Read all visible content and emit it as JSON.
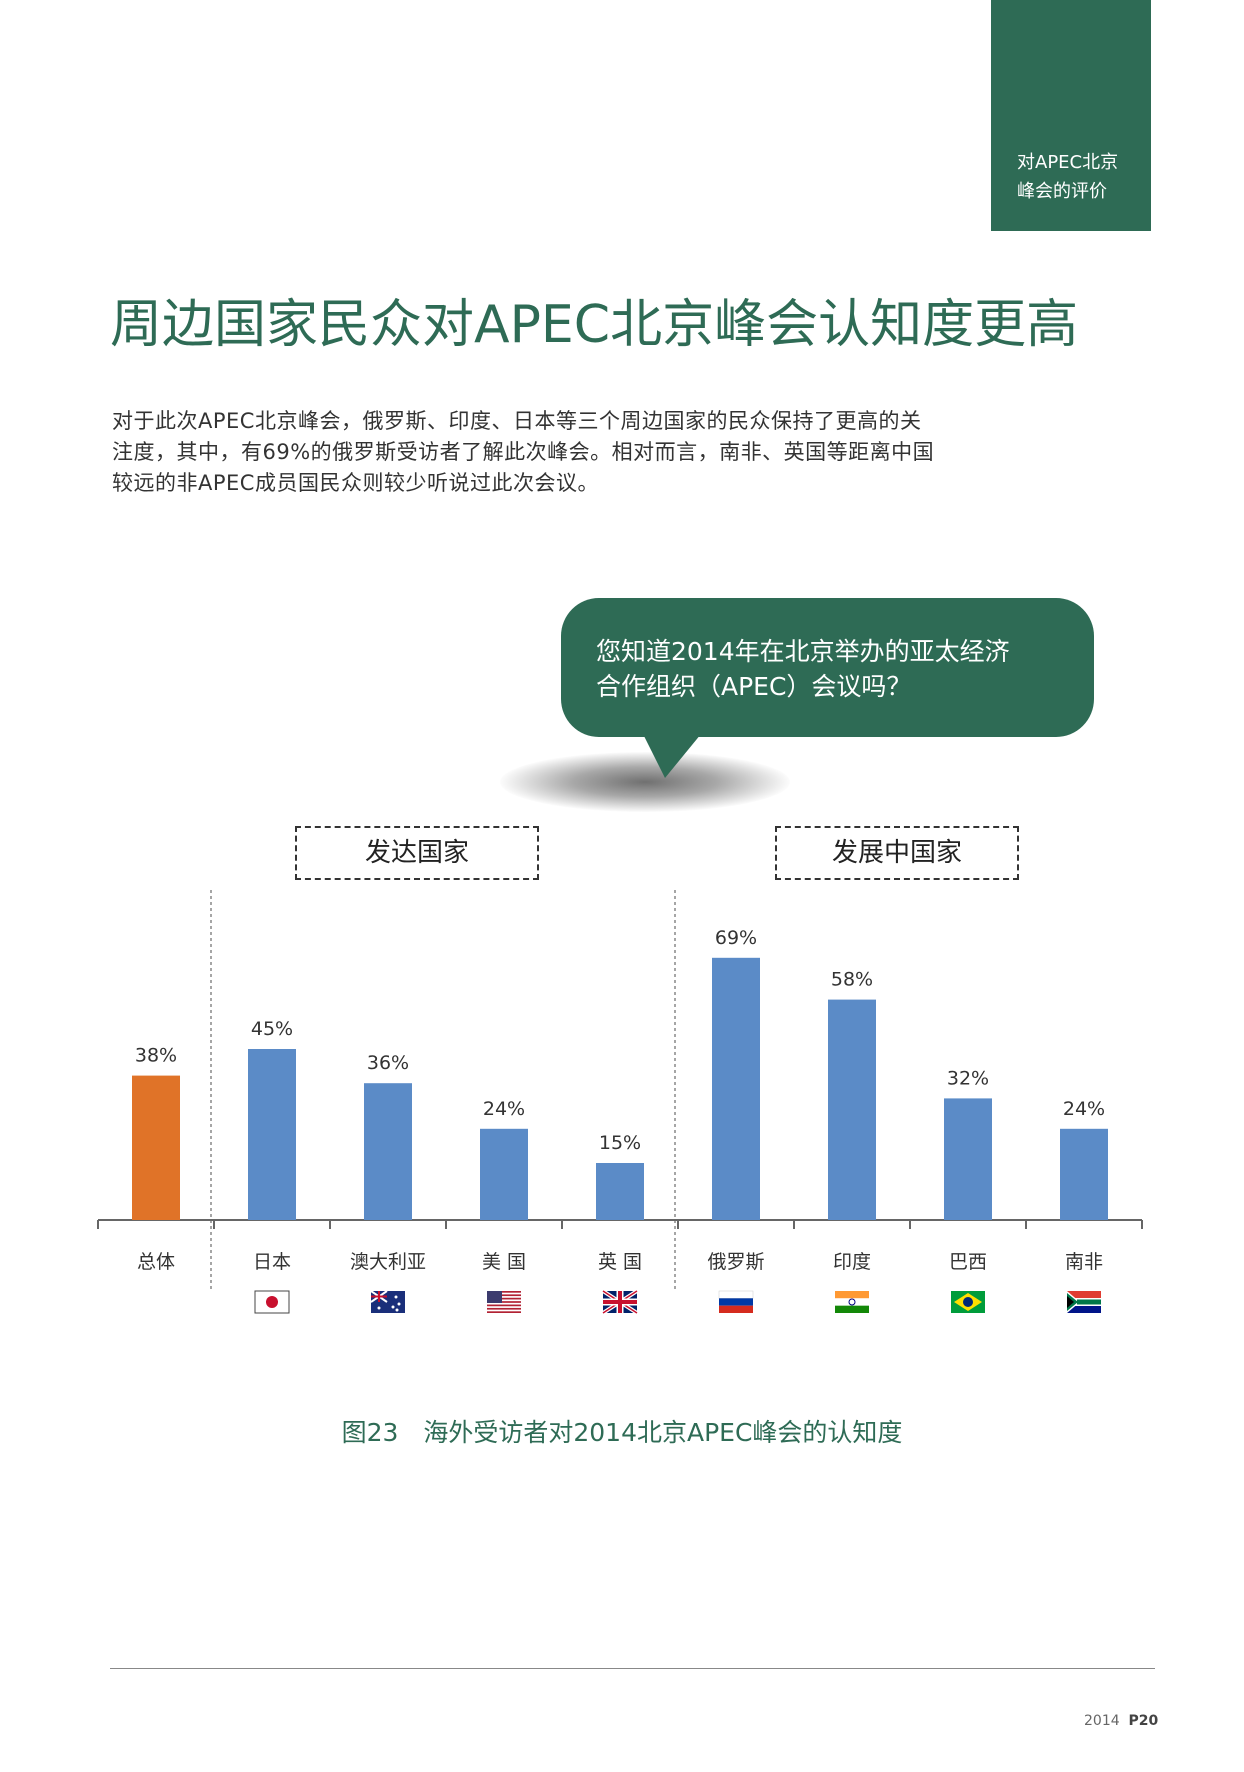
{
  "section_tab": [
    "对APEC北京",
    "峰会的评价"
  ],
  "title": "周边国家民众对APEC北京峰会认知度更高",
  "intro_lines": [
    "对于此次APEC北京峰会，俄罗斯、印度、日本等三个周边国家的民众保持了更高的关",
    "注度，其中，有69%的俄罗斯受访者了解此次峰会。相对而言，南非、英国等距离中国",
    "较远的非APEC成员国民众则较少听说过此次会议。"
  ],
  "question_lines": [
    "您知道2014年在北京举办的亚太经济",
    "合作组织（APEC）会议吗？"
  ],
  "groups": {
    "developed": "发达国家",
    "developing": "发展中国家"
  },
  "colors": {
    "accent": "#2e6b55",
    "total": "#e07328",
    "country": "#5b8bc7"
  },
  "chart_data": {
    "type": "bar",
    "categories": [
      "总体",
      "日本",
      "澳大利亚",
      "美 国",
      "英 国",
      "俄罗斯",
      "印度",
      "巴西",
      "南非"
    ],
    "values": [
      38,
      45,
      36,
      24,
      15,
      69,
      58,
      32,
      24
    ],
    "value_labels": [
      "38%",
      "45%",
      "36%",
      "24%",
      "15%",
      "69%",
      "58%",
      "32%",
      "24%"
    ],
    "groups": [
      {
        "name": "发达国家",
        "categories": [
          "日本",
          "澳大利亚",
          "美 国",
          "英 国"
        ]
      },
      {
        "name": "发展中国家",
        "categories": [
          "俄罗斯",
          "印度",
          "巴西",
          "南非"
        ]
      }
    ],
    "flags": [
      "",
      "japan-flag",
      "australia-flag",
      "usa-flag",
      "uk-flag",
      "russia-flag",
      "india-flag",
      "brazil-flag",
      "south-africa-flag"
    ],
    "ylim": [
      0,
      75
    ],
    "grid": false,
    "legend": "none"
  },
  "caption": "图23　海外受访者对2014北京APEC峰会的认知度",
  "footer": {
    "year": "2014",
    "page": "P20"
  }
}
